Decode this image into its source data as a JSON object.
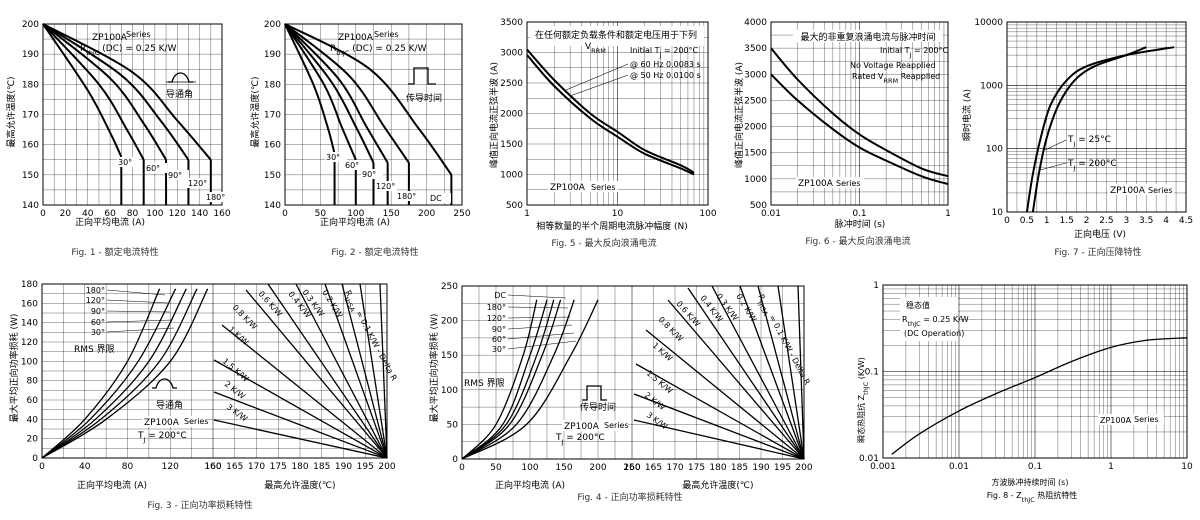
{
  "chart_data": [
    {
      "id": "fig1",
      "type": "line",
      "caption": "Fig. 1 - 额定电流特性",
      "xlabel": "正向平均电流 (A)",
      "ylabel": "最高允许温度(℃)",
      "xlim": [
        0,
        160
      ],
      "ylim": [
        140,
        200
      ],
      "xticks": [
        0,
        20,
        40,
        60,
        80,
        100,
        120,
        140,
        160
      ],
      "yticks": [
        140,
        150,
        160,
        170,
        180,
        190,
        200
      ],
      "annotations": [
        "ZP100A",
        "Series",
        "R",
        "thJC",
        "(DC) = 0.25 K/W",
        "导通角"
      ],
      "series": [
        {
          "name": "30°",
          "x": [
            0,
            40,
            60,
            70,
            70
          ],
          "y": [
            200,
            178,
            164,
            156,
            140
          ]
        },
        {
          "name": "60°",
          "x": [
            0,
            50,
            75,
            90,
            90
          ],
          "y": [
            200,
            180,
            165,
            155,
            140
          ]
        },
        {
          "name": "90°",
          "x": [
            0,
            60,
            90,
            110,
            110
          ],
          "y": [
            200,
            182,
            167,
            155,
            140
          ]
        },
        {
          "name": "120°",
          "x": [
            0,
            70,
            105,
            130,
            130
          ],
          "y": [
            200,
            183,
            168,
            155,
            140
          ]
        },
        {
          "name": "180°",
          "x": [
            0,
            80,
            120,
            150,
            150
          ],
          "y": [
            200,
            184,
            168,
            155,
            140
          ]
        }
      ]
    },
    {
      "id": "fig2",
      "type": "line",
      "caption": "Fig. 2 - 额定电流特性",
      "xlabel": "正向平均电流 (A)",
      "ylabel": "最高允许温度(℃)",
      "xlim": [
        0,
        250
      ],
      "ylim": [
        140,
        200
      ],
      "xticks": [
        0,
        50,
        100,
        150,
        200,
        250
      ],
      "yticks": [
        140,
        150,
        160,
        170,
        180,
        190,
        200
      ],
      "annotations": [
        "ZP100A",
        "Series",
        "R",
        "thJC",
        "(DC) = 0.25 K/W",
        "传导时间"
      ],
      "series": [
        {
          "name": "30°",
          "x": [
            0,
            40,
            60,
            70,
            70
          ],
          "y": [
            200,
            180,
            166,
            157,
            140
          ]
        },
        {
          "name": "60°",
          "x": [
            0,
            55,
            80,
            100,
            100
          ],
          "y": [
            200,
            180,
            166,
            155,
            140
          ]
        },
        {
          "name": "90°",
          "x": [
            0,
            65,
            100,
            125,
            125
          ],
          "y": [
            200,
            181,
            166,
            154,
            140
          ]
        },
        {
          "name": "120°",
          "x": [
            0,
            75,
            115,
            145,
            145
          ],
          "y": [
            200,
            182,
            166,
            154,
            140
          ]
        },
        {
          "name": "180°",
          "x": [
            0,
            90,
            140,
            175,
            175
          ],
          "y": [
            200,
            183,
            166,
            154,
            140
          ]
        },
        {
          "name": "DC",
          "x": [
            0,
            120,
            190,
            235,
            235
          ],
          "y": [
            200,
            185,
            165,
            150,
            140
          ]
        }
      ]
    },
    {
      "id": "fig5",
      "type": "line",
      "caption": "Fig. 5 - 最大反向浪涌电流",
      "xlabel": "相等数量的半个周期电流脉冲幅度 (N)",
      "ylabel": "峰值正向电流正弦半波 (A)",
      "xscale": "log",
      "xlim": [
        1,
        100
      ],
      "ylim": [
        500,
        3500
      ],
      "xticks": [
        1,
        10,
        100
      ],
      "yticks": [
        500,
        1000,
        1500,
        2000,
        2500,
        3000,
        3500
      ],
      "annotations": [
        "在任何额定负载条件和额定电压用于下列",
        "V",
        "RRM",
        "Initial T",
        "J",
        "= 200°C",
        "@ 60 Hz 0.0083 s",
        "@ 50 Hz 0.0100 s",
        "ZP100A",
        "Series"
      ],
      "series": [
        {
          "name": "@ 60 Hz 0.0083 s",
          "x": [
            1,
            2,
            5,
            10,
            20,
            50,
            70
          ],
          "y": [
            3050,
            2550,
            2000,
            1700,
            1400,
            1150,
            1030
          ]
        },
        {
          "name": "@ 50 Hz 0.0100 s",
          "x": [
            1,
            2,
            5,
            10,
            20,
            50,
            70
          ],
          "y": [
            2960,
            2450,
            1920,
            1620,
            1340,
            1100,
            1000
          ]
        }
      ]
    },
    {
      "id": "fig6",
      "type": "line",
      "caption": "Fig. 6 - 最大反向浪涌电流",
      "xlabel": "脉冲时间 (s)",
      "ylabel": "峰值正向电流正弦半波 (A)",
      "xscale": "log",
      "xlim": [
        0.01,
        1
      ],
      "ylim": [
        500,
        4000
      ],
      "xticks": [
        0.01,
        0.1,
        1
      ],
      "yticks": [
        500,
        1000,
        1500,
        2000,
        2500,
        3000,
        3500,
        4000
      ],
      "annotations": [
        "最大的非重复浪涌电流与脉冲时间",
        "Initial T",
        "J",
        "= 200°C",
        "No Voltage Reapplied",
        "Rated V",
        "RRM",
        "Reapplied",
        "ZP100A",
        "Series"
      ],
      "series": [
        {
          "name": "No Voltage Reapplied",
          "x": [
            0.01,
            0.02,
            0.05,
            0.1,
            0.2,
            0.5,
            1
          ],
          "y": [
            3500,
            2900,
            2250,
            1850,
            1550,
            1200,
            1050
          ]
        },
        {
          "name": "Rated VRRM Reapplied",
          "x": [
            0.01,
            0.02,
            0.05,
            0.1,
            0.2,
            0.5,
            1
          ],
          "y": [
            3000,
            2500,
            1950,
            1600,
            1350,
            1050,
            900
          ]
        }
      ]
    },
    {
      "id": "fig7",
      "type": "line",
      "caption": "Fig. 7 - 正向压降特性",
      "xlabel": "正向电压 (V)",
      "ylabel": "瞬时电流 (A)",
      "yscale": "log",
      "xlim": [
        0,
        4.5
      ],
      "ylim": [
        10,
        10000
      ],
      "xticks": [
        0,
        0.5,
        1,
        1.5,
        2,
        2.5,
        3,
        3.5,
        4,
        4.5
      ],
      "yticks": [
        10,
        100,
        1000,
        10000
      ],
      "annotations": [
        "T",
        "J",
        "= 25°C",
        "T",
        "J",
        "= 200°C",
        "ZP100A",
        "Series"
      ],
      "series": [
        {
          "name": "TJ = 25°C",
          "x": [
            0.65,
            0.8,
            1.0,
            1.3,
            1.7,
            2.2,
            3.0,
            3.5
          ],
          "y": [
            10,
            40,
            150,
            500,
            1200,
            2000,
            3000,
            4000
          ]
        },
        {
          "name": "TJ = 200°C",
          "x": [
            0.5,
            0.65,
            0.85,
            1.1,
            1.5,
            2.0,
            3.0,
            4.2
          ],
          "y": [
            10,
            40,
            150,
            500,
            1200,
            2000,
            3000,
            4000
          ]
        }
      ]
    },
    {
      "id": "fig3",
      "type": "line",
      "caption": "Fig. 3 - 正向功率损耗特性",
      "xlabel": "正向平均电流 (A)",
      "xlabel2": "最高允许温度(℃)",
      "ylabel": "最大平均正向功率损耗 (W)",
      "xlim": [
        0,
        160
      ],
      "x2lim": [
        160,
        200
      ],
      "ylim": [
        0,
        180
      ],
      "xticks": [
        0,
        40,
        80,
        120,
        160
      ],
      "x2ticks": [
        175,
        200
      ],
      "x2ticks_display": [
        160,
        165,
        170,
        175,
        180,
        185,
        190,
        195,
        200
      ],
      "yticks": [
        0,
        20,
        40,
        60,
        80,
        100,
        120,
        140,
        160,
        180
      ],
      "annotations": [
        "180°",
        "120°",
        "90°",
        "60°",
        "30°",
        "RMS 界限",
        "导通角",
        "ZP100A",
        "Series",
        "T",
        "J",
        "= 200°C",
        "R",
        "thSA",
        "= 0.1 K/W - Delta R",
        "0.2 K/W",
        "0.3 K/W",
        "0.4 K/W",
        "0.6 K/W",
        "0.8 K/W",
        "1 K/W",
        "1.5 K/W",
        "2 K/W",
        "3 K/W"
      ],
      "series": [
        {
          "name": "30°",
          "x": [
            0,
            40,
            80,
            110
          ],
          "y": [
            0,
            40,
            100,
            175
          ]
        },
        {
          "name": "60°",
          "x": [
            0,
            45,
            90,
            125
          ],
          "y": [
            0,
            40,
            100,
            175
          ]
        },
        {
          "name": "90°",
          "x": [
            0,
            50,
            100,
            135
          ],
          "y": [
            0,
            40,
            100,
            175
          ]
        },
        {
          "name": "120°",
          "x": [
            0,
            55,
            110,
            145
          ],
          "y": [
            0,
            40,
            100,
            175
          ]
        },
        {
          "name": "180°",
          "x": [
            0,
            60,
            120,
            155
          ],
          "y": [
            0,
            40,
            100,
            175
          ]
        }
      ]
    },
    {
      "id": "fig4",
      "type": "line",
      "caption": "Fig. 4 - 正向功率损耗特性",
      "xlabel": "正向平均电流 (A)",
      "xlabel2": "最高允许温度(℃)",
      "ylabel": "最大平均正向功率损耗 (W)",
      "xlim": [
        0,
        250
      ],
      "x2lim": [
        160,
        200
      ],
      "ylim": [
        0,
        250
      ],
      "xticks": [
        0,
        50,
        100,
        150,
        200,
        250
      ],
      "x2ticks": [
        175,
        200
      ],
      "x2ticks_display": [
        160,
        165,
        170,
        175,
        180,
        185,
        190,
        195,
        200
      ],
      "yticks": [
        0,
        50,
        100,
        150,
        200,
        250
      ],
      "annotations": [
        "DC",
        "180°",
        "120°",
        "90°",
        "60°",
        "30°",
        "RMS 界限",
        "传导时间",
        "ZP100A",
        "Series",
        "T",
        "J",
        "= 200°C",
        "R",
        "thSA",
        "= 0.1 K/W - Delta R",
        "0.2 K/W",
        "0.3 K/W",
        "0.4 K/W",
        "0.6 K/W",
        "0.8 K/W",
        "1 K/W",
        "1.5 K/W",
        "2 K/W",
        "3 K/W"
      ],
      "series": [
        {
          "name": "30°",
          "x": [
            0,
            50,
            90,
            110
          ],
          "y": [
            0,
            50,
            150,
            230
          ]
        },
        {
          "name": "60°",
          "x": [
            0,
            60,
            100,
            125
          ],
          "y": [
            0,
            50,
            150,
            230
          ]
        },
        {
          "name": "90°",
          "x": [
            0,
            65,
            110,
            135
          ],
          "y": [
            0,
            50,
            150,
            230
          ]
        },
        {
          "name": "120°",
          "x": [
            0,
            70,
            118,
            145
          ],
          "y": [
            0,
            50,
            150,
            230
          ]
        },
        {
          "name": "180°",
          "x": [
            0,
            80,
            135,
            165
          ],
          "y": [
            0,
            50,
            150,
            230
          ]
        },
        {
          "name": "DC",
          "x": [
            0,
            95,
            160,
            200
          ],
          "y": [
            0,
            50,
            150,
            230
          ]
        }
      ]
    },
    {
      "id": "fig8",
      "type": "line",
      "caption": "Fig. 8 - Z",
      "caption_sub": "thJC",
      "caption_tail": "热阻抗特性",
      "xlabel": "方波脉冲持续时间 (s)",
      "ylabel": "瞬态热阻抗 Z",
      "ylabel_sub": "thJC",
      "ylabel_tail": "(K/W)",
      "xscale": "log",
      "yscale": "log",
      "xlim": [
        0.001,
        10
      ],
      "ylim": [
        0.01,
        1
      ],
      "xticks": [
        0.001,
        0.01,
        0.1,
        1,
        10
      ],
      "yticks": [
        0.01,
        0.1,
        1
      ],
      "annotations": [
        "稳态值",
        "R",
        "thJC",
        "= 0.25 K/W",
        "(DC Operation)",
        "ZP100A",
        "Series"
      ],
      "series": [
        {
          "name": "ZthJC",
          "x": [
            0.0013,
            0.003,
            0.01,
            0.03,
            0.1,
            0.3,
            1,
            3,
            10
          ],
          "y": [
            0.011,
            0.019,
            0.035,
            0.055,
            0.085,
            0.13,
            0.19,
            0.23,
            0.245
          ]
        }
      ]
    }
  ]
}
